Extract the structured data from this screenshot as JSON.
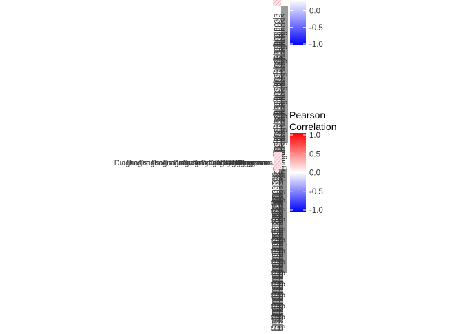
{
  "chart_data": [
    {
      "type": "heatmap",
      "title": "",
      "xlabel": "",
      "ylabel": "",
      "value_range": [
        -1,
        1
      ],
      "legend": {
        "title": "",
        "ticks": [
          0.0,
          -0.5,
          -1.0
        ],
        "tick_labels": [
          "0.0",
          "-0.5",
          "-1.0"
        ],
        "colors": {
          "low": "#0000ff",
          "mid": "#ffffff",
          "high": "#ff0000"
        },
        "placement": "right"
      }
    },
    {
      "type": "heatmap",
      "title": "",
      "xlabel": "",
      "ylabel": "",
      "value_range": [
        -1,
        1
      ],
      "legend": {
        "title": "Pearson Correlation",
        "title_lines": [
          "Pearson",
          "Correlation"
        ],
        "ticks": [
          1.0,
          0.5,
          0.0,
          -0.5,
          -1.0
        ],
        "tick_labels": [
          "1.0",
          "0.5",
          "0.0",
          "-0.5",
          "-1.0"
        ],
        "colors": {
          "low": "#0000ff",
          "mid": "#ffffff",
          "high": "#ff0000"
        },
        "placement": "right"
      },
      "row_label_fragment": "Diagnosis",
      "col_label_fragment": "Diagnosis"
    }
  ]
}
